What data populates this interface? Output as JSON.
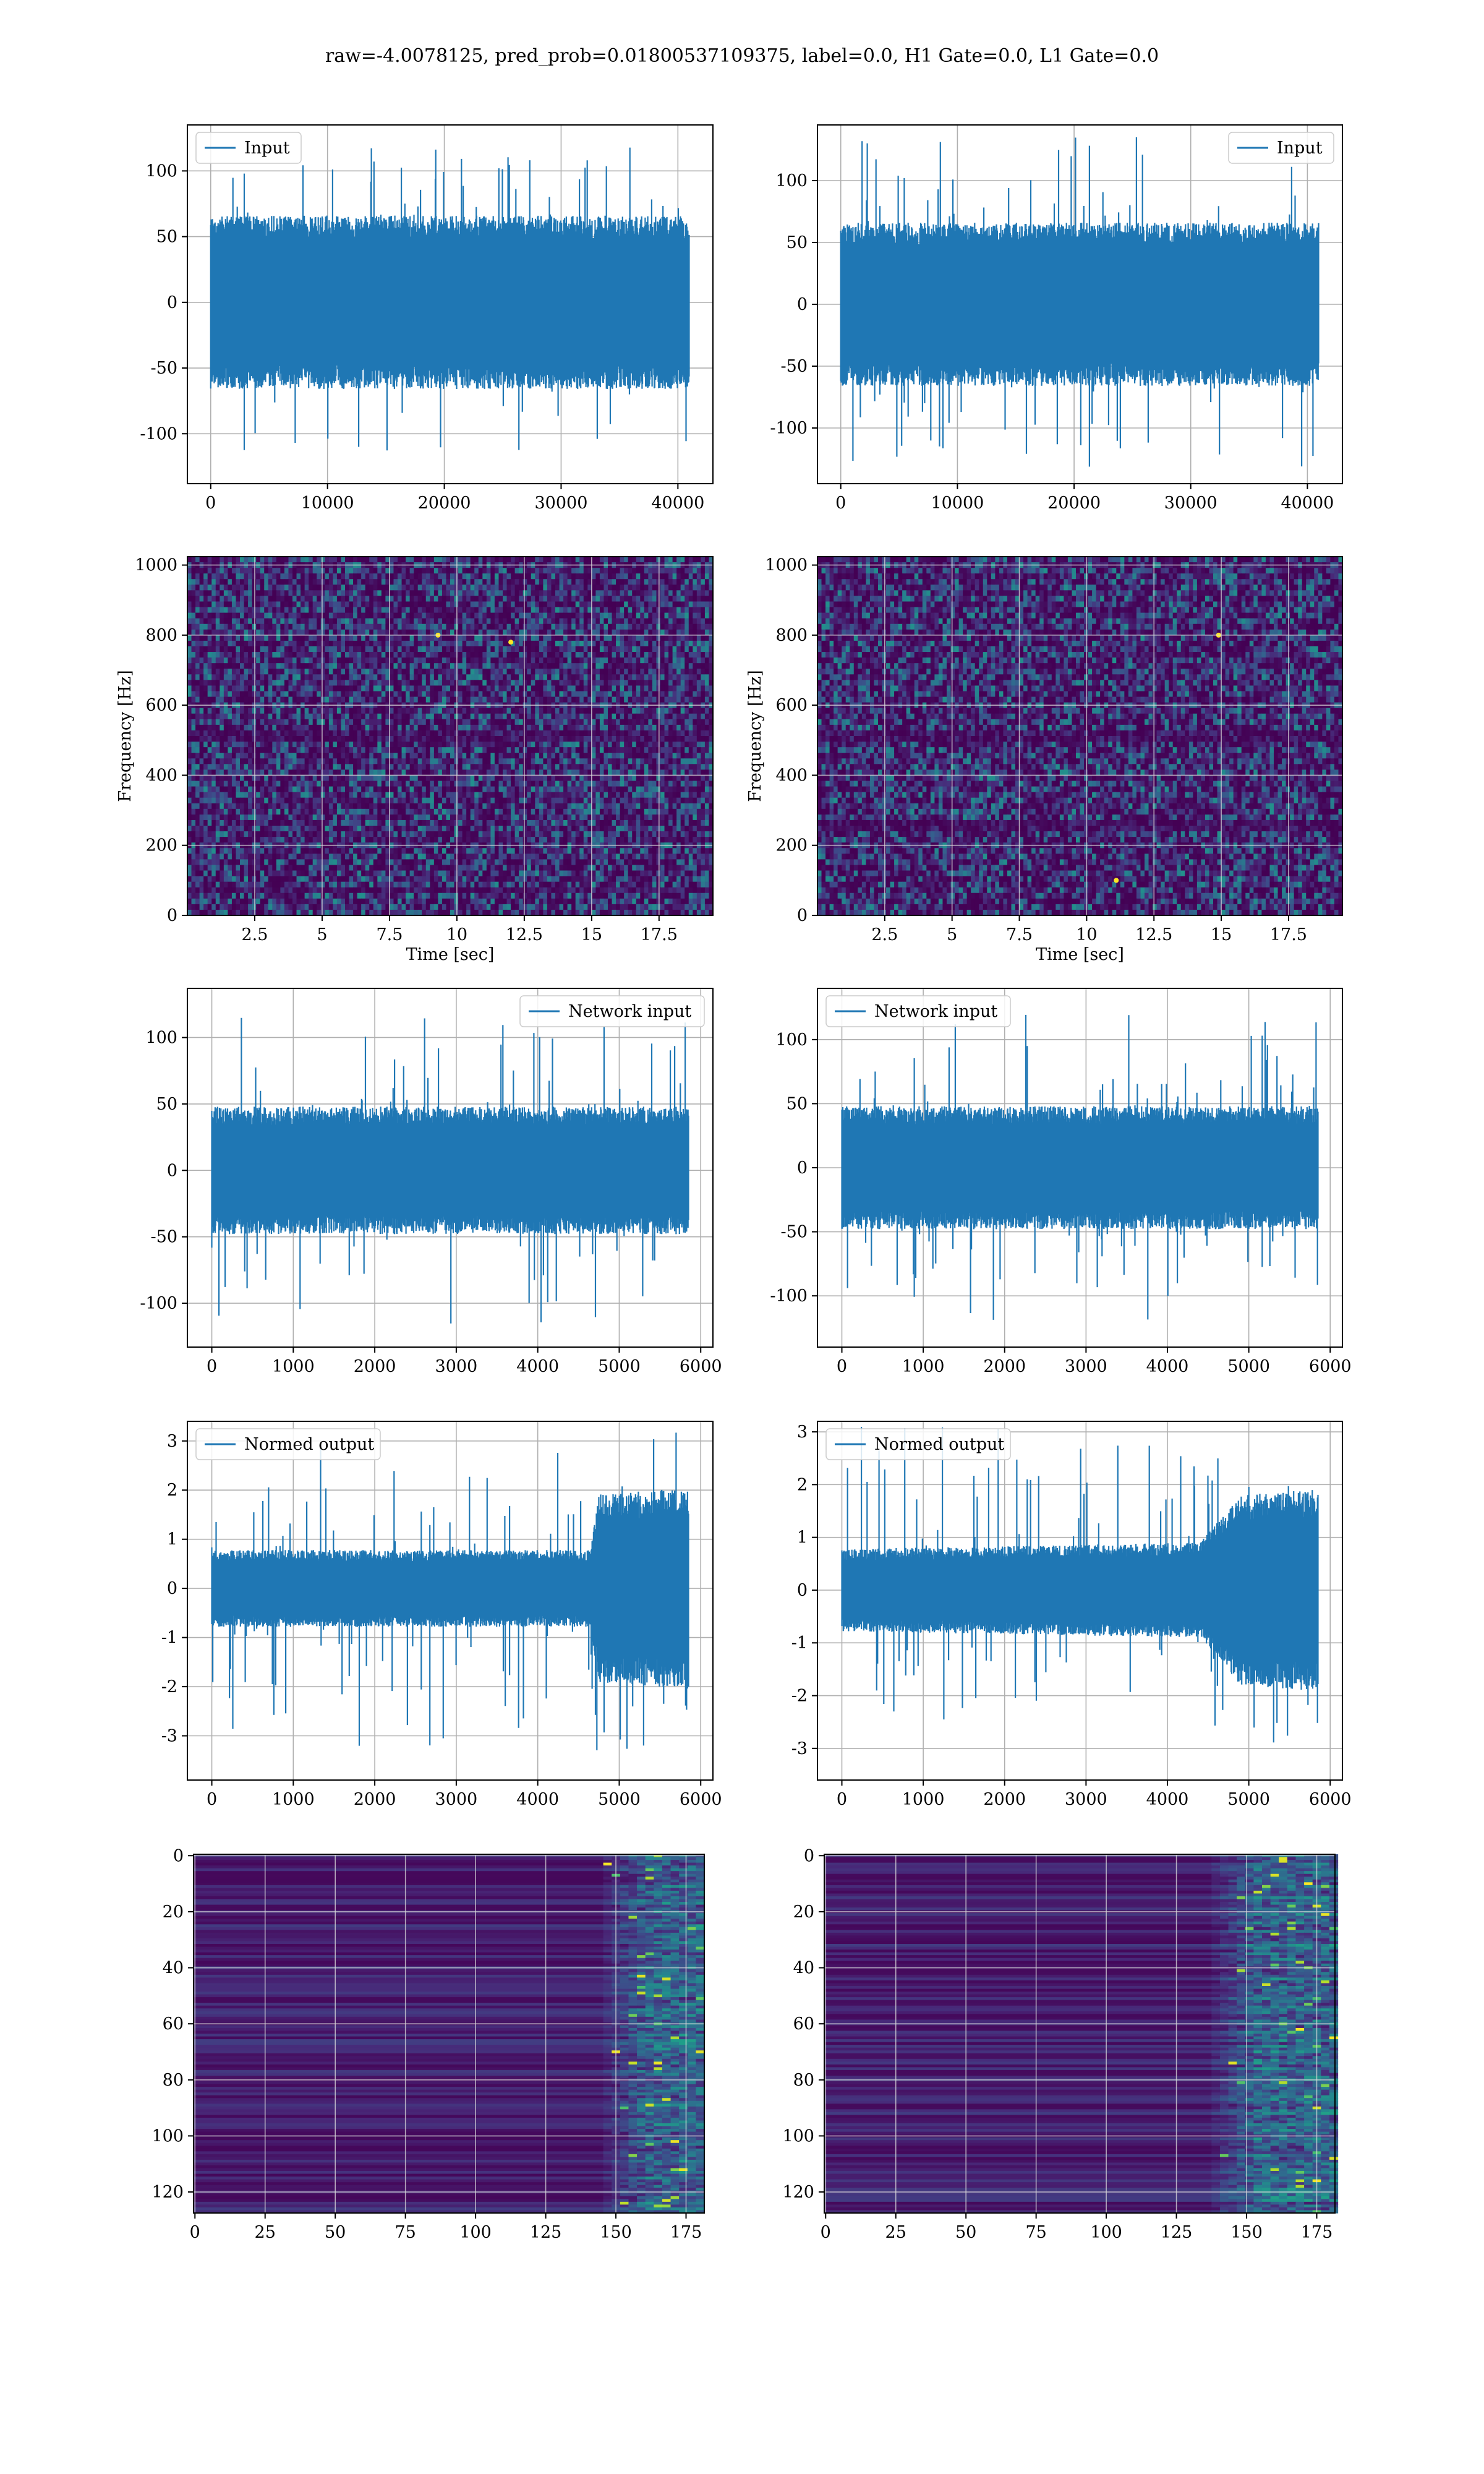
{
  "figure": {
    "title": "raw=-4.0078125, pred_prob=0.01800537109375, label=0.0, H1 Gate=0.0, L1 Gate=0.0"
  },
  "colors": {
    "line": "#1f77b4",
    "grid": "#b0b0b0",
    "viridis_dark": "#440154",
    "viridis_mid": "#31688e",
    "viridis_teal": "#35b779",
    "viridis_yellow": "#fde725"
  },
  "chart_data": [
    {
      "id": "input-h",
      "type": "line",
      "xlim": [
        -2000,
        43000
      ],
      "ylim": [
        -138,
        135
      ],
      "xticks": [
        0,
        10000,
        20000,
        30000,
        40000
      ],
      "yticks": [
        -100,
        -50,
        0,
        50,
        100
      ],
      "x_range": [
        0,
        40960
      ],
      "n_points": 1100,
      "envelope": [
        {
          "x": 0,
          "amp": 55
        },
        {
          "x": 40960,
          "amp": 55
        }
      ],
      "spike_amp": 120,
      "legend": {
        "label": "Input",
        "loc": "upper-left"
      },
      "grid": true,
      "xlabel": "",
      "ylabel": ""
    },
    {
      "id": "input-l",
      "type": "line",
      "xlim": [
        -2000,
        43000
      ],
      "ylim": [
        -145,
        145
      ],
      "xticks": [
        0,
        10000,
        20000,
        30000,
        40000
      ],
      "yticks": [
        -100,
        -50,
        0,
        50,
        100
      ],
      "x_range": [
        0,
        40960
      ],
      "n_points": 1100,
      "envelope": [
        {
          "x": 0,
          "amp": 55
        },
        {
          "x": 40960,
          "amp": 55
        }
      ],
      "spike_amp": 135,
      "legend": {
        "label": "Input",
        "loc": "upper-right"
      },
      "grid": true,
      "xlabel": "",
      "ylabel": ""
    },
    {
      "id": "spec-h",
      "type": "heatmap",
      "kind": "spectrogram",
      "xlim": [
        0,
        19.5
      ],
      "ylim": [
        0,
        1024
      ],
      "xticks": [
        2.5,
        5.0,
        7.5,
        10.0,
        12.5,
        15.0,
        17.5
      ],
      "yticks": [
        0,
        200,
        400,
        600,
        800,
        1000
      ],
      "xlabel": "Time [sec]",
      "ylabel": "Frequency [Hz]",
      "rows": 64,
      "cols": 130,
      "dark_bands": [
        0.5,
        0.07
      ],
      "bright_spots": [
        [
          9.3,
          800
        ],
        [
          12,
          780
        ]
      ],
      "grid": true
    },
    {
      "id": "spec-l",
      "type": "heatmap",
      "kind": "spectrogram",
      "xlim": [
        0,
        19.5
      ],
      "ylim": [
        0,
        1024
      ],
      "xticks": [
        2.5,
        5.0,
        7.5,
        10.0,
        12.5,
        15.0,
        17.5
      ],
      "yticks": [
        0,
        200,
        400,
        600,
        800,
        1000
      ],
      "xlabel": "Time [sec]",
      "ylabel": "Frequency [Hz]",
      "rows": 64,
      "cols": 130,
      "dark_bands": [
        0.5,
        0.25
      ],
      "bright_spots": [
        [
          14.9,
          800
        ],
        [
          11.1,
          100
        ]
      ],
      "grid": true
    },
    {
      "id": "net-h",
      "type": "line",
      "xlim": [
        -300,
        6150
      ],
      "ylim": [
        -133,
        137
      ],
      "xticks": [
        0,
        1000,
        2000,
        3000,
        4000,
        5000,
        6000
      ],
      "yticks": [
        -100,
        -50,
        0,
        50,
        100
      ],
      "x_range": [
        0,
        5850
      ],
      "n_points": 1000,
      "envelope": [
        {
          "x": 0,
          "amp": 40
        },
        {
          "x": 5850,
          "amp": 40
        }
      ],
      "spike_amp": 120,
      "legend": {
        "label": "Network input",
        "loc": "upper-right"
      },
      "grid": true,
      "xlabel": "",
      "ylabel": ""
    },
    {
      "id": "net-l",
      "type": "line",
      "xlim": [
        -300,
        6150
      ],
      "ylim": [
        -140,
        140
      ],
      "xticks": [
        0,
        1000,
        2000,
        3000,
        4000,
        5000,
        6000
      ],
      "yticks": [
        -100,
        -50,
        0,
        50,
        100
      ],
      "x_range": [
        0,
        5850
      ],
      "n_points": 1000,
      "envelope": [
        {
          "x": 0,
          "amp": 40
        },
        {
          "x": 5850,
          "amp": 40
        }
      ],
      "spike_amp": 120,
      "legend": {
        "label": "Network input",
        "loc": "upper-left"
      },
      "grid": true,
      "xlabel": "",
      "ylabel": ""
    },
    {
      "id": "norm-h",
      "type": "line",
      "xlim": [
        -300,
        6150
      ],
      "ylim": [
        -3.9,
        3.4
      ],
      "xticks": [
        0,
        1000,
        2000,
        3000,
        4000,
        5000,
        6000
      ],
      "yticks": [
        -3,
        -2,
        -1,
        0,
        1,
        2,
        3
      ],
      "x_range": [
        0,
        5850
      ],
      "n_points": 1000,
      "envelope": [
        {
          "x": 0,
          "amp": 0.65
        },
        {
          "x": 4650,
          "amp": 0.65
        },
        {
          "x": 4750,
          "amp": 1.6
        },
        {
          "x": 5850,
          "amp": 1.7
        }
      ],
      "spike_amp": 3.3,
      "legend": {
        "label": "Normed output",
        "loc": "upper-left"
      },
      "grid": true,
      "xlabel": "",
      "ylabel": ""
    },
    {
      "id": "norm-l",
      "type": "line",
      "xlim": [
        -300,
        6150
      ],
      "ylim": [
        -3.6,
        3.2
      ],
      "xticks": [
        0,
        1000,
        2000,
        3000,
        4000,
        5000,
        6000
      ],
      "yticks": [
        -3,
        -2,
        -1,
        0,
        1,
        2,
        3
      ],
      "x_range": [
        0,
        5850
      ],
      "n_points": 1000,
      "envelope": [
        {
          "x": 0,
          "amp": 0.65
        },
        {
          "x": 4400,
          "amp": 0.75
        },
        {
          "x": 4900,
          "amp": 1.5
        },
        {
          "x": 5850,
          "amp": 1.6
        }
      ],
      "spike_amp": 3.1,
      "legend": {
        "label": "Normed output",
        "loc": "upper-left"
      },
      "grid": true,
      "xlabel": "",
      "ylabel": ""
    },
    {
      "id": "feat-h",
      "type": "heatmap",
      "kind": "feature-map",
      "xlim": [
        -0.5,
        181.5
      ],
      "ylim": [
        127.5,
        -0.5
      ],
      "xticks": [
        0,
        25,
        50,
        75,
        100,
        125,
        150,
        175
      ],
      "yticks": [
        0,
        20,
        40,
        60,
        80,
        100,
        120
      ],
      "rows": 128,
      "cols": 182,
      "onset_col": 148,
      "grid": true,
      "xlabel": "",
      "ylabel": ""
    },
    {
      "id": "feat-l",
      "type": "heatmap",
      "kind": "feature-map",
      "xlim": [
        -0.5,
        181.5
      ],
      "ylim": [
        127.5,
        -0.5
      ],
      "xticks": [
        0,
        25,
        50,
        75,
        100,
        125,
        150,
        175
      ],
      "yticks": [
        0,
        20,
        40,
        60,
        80,
        100,
        120
      ],
      "rows": 128,
      "cols": 182,
      "onset_col": 140,
      "grid": true,
      "xlabel": "",
      "ylabel": ""
    }
  ]
}
